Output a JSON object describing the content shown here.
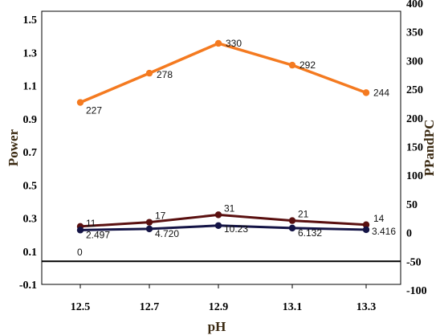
{
  "chart_data": {
    "type": "line",
    "x": [
      "12.5",
      "12.7",
      "12.9",
      "13.1",
      "13.3"
    ],
    "xlabel": "pH",
    "y_left_label": "Power",
    "y_right_label": "PPandPC",
    "y_left_ticks": [
      "-0.1",
      "0.1",
      "0.3",
      "0.5",
      "0.7",
      "0.9",
      "1.1",
      "1.3",
      "1.5"
    ],
    "y_right_ticks": [
      "-100",
      "-50",
      "0",
      "50",
      "100",
      "150",
      "200",
      "250",
      "300",
      "350",
      "400"
    ],
    "y_left_range": [
      -0.1,
      1.5
    ],
    "y_right_range": [
      -100,
      400
    ],
    "series": [
      {
        "axis": "right",
        "color": "#f47a20",
        "values": [
          227,
          278,
          330,
          292,
          244
        ],
        "labels": [
          "227",
          "278",
          "330",
          "292",
          "244"
        ]
      },
      {
        "axis": "left",
        "color": "#5a1010",
        "values": [
          0.25,
          0.275,
          0.32,
          0.285,
          0.26
        ],
        "labels": [
          "11",
          "17",
          "31",
          "21",
          "14"
        ]
      },
      {
        "axis": "left",
        "color": "#141446",
        "values": [
          0.228,
          0.235,
          0.255,
          0.24,
          0.23
        ],
        "labels": [
          "2.497",
          "4.720",
          "10.23",
          "6.132",
          "3.416"
        ]
      }
    ],
    "annotations": [
      {
        "text": "0",
        "at_x": "12.5"
      }
    ],
    "reference_line": {
      "axis": "right",
      "value": -50,
      "color": "#000000"
    },
    "grid": false
  }
}
